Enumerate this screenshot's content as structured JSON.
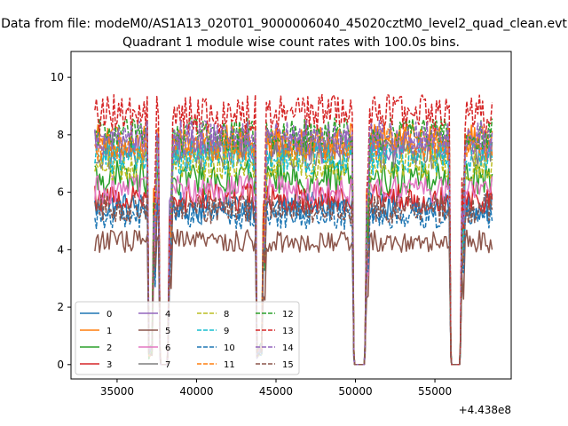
{
  "figure": {
    "suptitle": "Data from file: modeM0/AS1A13_020T01_9000006040_45020cztM0_level2_quad_clean.evt"
  },
  "chart_data": {
    "type": "line",
    "title": "Quadrant 1 module wise count rates with 100.0s bins.",
    "xlabel": "",
    "ylabel": "",
    "x_offset_label": "+4.438e8",
    "xlim": [
      32100,
      59800
    ],
    "ylim": [
      -0.5,
      10.9
    ],
    "x_ticks": [
      35000,
      40000,
      45000,
      50000,
      55000
    ],
    "x_tick_labels": [
      "35000",
      "40000",
      "45000",
      "50000",
      "55000"
    ],
    "y_ticks": [
      0,
      2,
      4,
      6,
      8,
      10
    ],
    "y_tick_labels": [
      "0",
      "2",
      "4",
      "6",
      "8",
      "10"
    ],
    "grid": false,
    "legend_placement": "lower-left",
    "legend_columns": 4,
    "segments": [
      {
        "x_start": 33600,
        "x_end": 36900
      },
      {
        "x_start": 37300,
        "x_end": 37600
      },
      {
        "x_start": 38300,
        "x_end": 43700
      },
      {
        "x_start": 44200,
        "x_end": 49800
      },
      {
        "x_start": 50700,
        "x_end": 55900
      },
      {
        "x_start": 56700,
        "x_end": 58600
      }
    ],
    "gaps_at_zero": [
      {
        "x_start": 37750,
        "x_end": 38150
      },
      {
        "x_start": 49950,
        "x_end": 50550
      },
      {
        "x_start": 56050,
        "x_end": 56550
      }
    ],
    "series": [
      {
        "name": "0",
        "color": "#1f77b4",
        "dash": "solid",
        "level": 5.5,
        "noise": 0.25
      },
      {
        "name": "1",
        "color": "#ff7f0e",
        "dash": "solid",
        "level": 7.8,
        "noise": 0.3
      },
      {
        "name": "2",
        "color": "#2ca02c",
        "dash": "solid",
        "level": 6.5,
        "noise": 0.3
      },
      {
        "name": "3",
        "color": "#d62728",
        "dash": "solid",
        "level": 5.8,
        "noise": 0.25
      },
      {
        "name": "4",
        "color": "#9467bd",
        "dash": "solid",
        "level": 7.6,
        "noise": 0.3
      },
      {
        "name": "5",
        "color": "#8c564b",
        "dash": "solid",
        "level": 4.3,
        "noise": 0.2
      },
      {
        "name": "6",
        "color": "#e377c2",
        "dash": "solid",
        "level": 6.1,
        "noise": 0.25
      },
      {
        "name": "7",
        "color": "#7f7f7f",
        "dash": "solid",
        "level": 7.4,
        "noise": 0.3
      },
      {
        "name": "8",
        "color": "#bcbd22",
        "dash": "dashed",
        "level": 7.0,
        "noise": 0.3
      },
      {
        "name": "9",
        "color": "#17becf",
        "dash": "dashed",
        "level": 7.2,
        "noise": 0.3
      },
      {
        "name": "10",
        "color": "#1f77b4",
        "dash": "dashed",
        "level": 5.2,
        "noise": 0.25
      },
      {
        "name": "11",
        "color": "#ff7f0e",
        "dash": "dashed",
        "level": 7.7,
        "noise": 0.3
      },
      {
        "name": "12",
        "color": "#2ca02c",
        "dash": "dashed",
        "level": 8.0,
        "noise": 0.3
      },
      {
        "name": "13",
        "color": "#d62728",
        "dash": "dashed",
        "level": 8.7,
        "noise": 0.35
      },
      {
        "name": "14",
        "color": "#9467bd",
        "dash": "dashed",
        "level": 7.9,
        "noise": 0.3
      },
      {
        "name": "15",
        "color": "#8c564b",
        "dash": "dashed",
        "level": 5.4,
        "noise": 0.25
      }
    ]
  }
}
